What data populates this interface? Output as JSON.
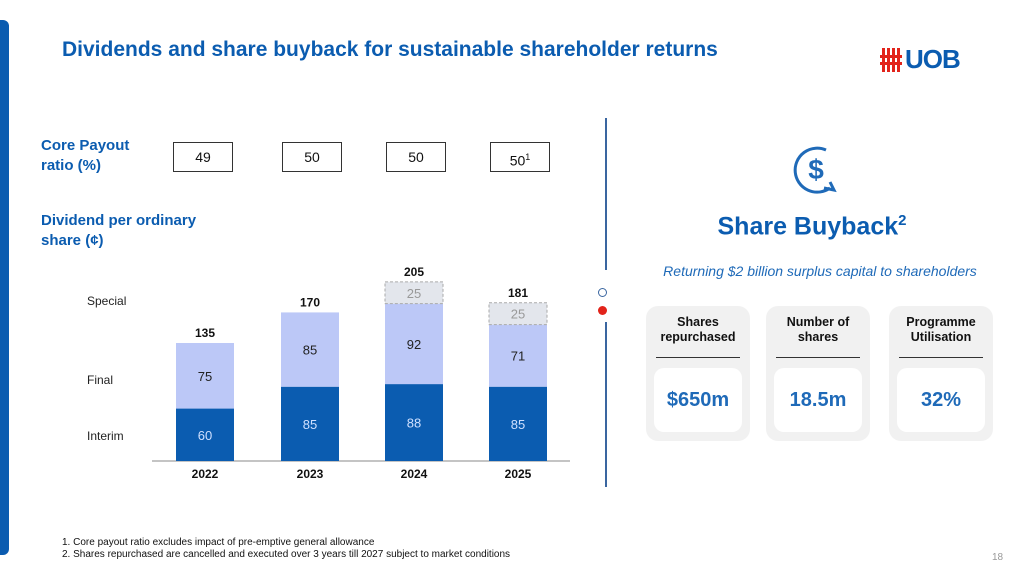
{
  "title": "Dividends and share buyback for sustainable shareholder returns",
  "logo": "UOB",
  "payout": {
    "label": "Core Payout ratio (%)",
    "values": [
      "49",
      "50",
      "50",
      "50"
    ],
    "last_note": "1"
  },
  "dps_label": "Dividend per ordinary share (¢)",
  "colors": {
    "brand": "#0b5cb0",
    "interim": "#0b5cb0",
    "final": "#bcc8f7",
    "special": "#e3e6ec",
    "logo_red": "#e2231a"
  },
  "chart_data": {
    "type": "bar",
    "stacked": true,
    "categories": [
      "2022",
      "2023",
      "2024",
      "2025"
    ],
    "series": [
      {
        "name": "Interim",
        "values": [
          60,
          85,
          88,
          85
        ]
      },
      {
        "name": "Final",
        "values": [
          75,
          85,
          92,
          71
        ]
      },
      {
        "name": "Special",
        "values": [
          0,
          0,
          25,
          25
        ]
      }
    ],
    "totals": [
      135,
      170,
      205,
      181
    ],
    "legend_placement": "left",
    "grid": false
  },
  "buyback": {
    "icon": "dollar-cycle-icon",
    "title": "Share Buyback",
    "title_note": "2",
    "subtitle": "Returning $2 billion surplus capital to shareholders",
    "cards": [
      {
        "heading": "Shares repurchased",
        "value": "$650m"
      },
      {
        "heading": "Number of shares",
        "value": "18.5m"
      },
      {
        "heading": "Programme Utilisation",
        "value": "32%"
      }
    ]
  },
  "footnotes": [
    "1.   Core payout ratio excludes impact of pre-emptive general allowance",
    "2.   Shares repurchased are cancelled and executed over 3 years till 2027 subject to market conditions"
  ],
  "page_number": "18"
}
